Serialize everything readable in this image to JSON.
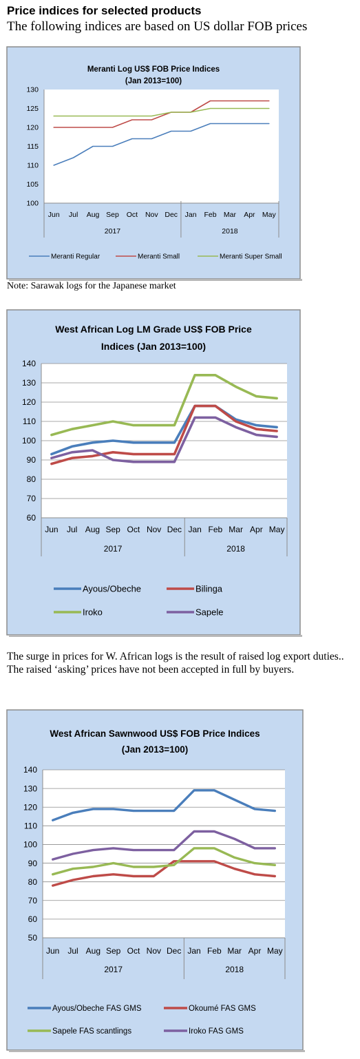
{
  "page": {
    "heading": "Price indices for selected products",
    "subheading": "The following indices are based on US dollar FOB prices",
    "note": "Note: Sarawak logs for the Japanese market",
    "paragraph": "The surge in prices for W. African logs is the result of raised log export duties.. The raised ‘asking’ prices have not been accepted in full by buyers."
  },
  "chart_data": [
    {
      "type": "line",
      "title": "Meranti Log US$ FOB Price Indices",
      "subtitle": "(Jan 2013=100)",
      "categories": [
        "Jun",
        "Jul",
        "Aug",
        "Sep",
        "Oct",
        "Nov",
        "Dec",
        "Jan",
        "Feb",
        "Mar",
        "Apr",
        "May"
      ],
      "year_groups": [
        {
          "label": "2017",
          "count": 7
        },
        {
          "label": "2018",
          "count": 5
        }
      ],
      "ylim": [
        100,
        130
      ],
      "yticks": [
        100,
        105,
        110,
        115,
        120,
        125,
        130
      ],
      "grid": false,
      "legend": "bottom",
      "series": [
        {
          "name": "Meranti Regular",
          "color": "#4a7ebb",
          "values": [
            110,
            112,
            115,
            115,
            117,
            117,
            119,
            119,
            121,
            121,
            121,
            121
          ]
        },
        {
          "name": "Meranti Small",
          "color": "#be4b48",
          "values": [
            120,
            120,
            120,
            120,
            122,
            122,
            124,
            124,
            127,
            127,
            127,
            127
          ]
        },
        {
          "name": "Meranti Super Small",
          "color": "#98b954",
          "values": [
            123,
            123,
            123,
            123,
            123,
            123,
            124,
            124,
            125,
            125,
            125,
            125
          ]
        }
      ]
    },
    {
      "type": "line",
      "title": "West African Log LM Grade US$ FOB Price",
      "subtitle": "Indices (Jan 2013=100)",
      "categories": [
        "Jun",
        "Jul",
        "Aug",
        "Sep",
        "Oct",
        "Nov",
        "Dec",
        "Jan",
        "Feb",
        "Mar",
        "Apr",
        "May"
      ],
      "year_groups": [
        {
          "label": "2017",
          "count": 7
        },
        {
          "label": "2018",
          "count": 5
        }
      ],
      "ylim": [
        60,
        140
      ],
      "yticks": [
        60,
        70,
        80,
        90,
        100,
        110,
        120,
        130,
        140
      ],
      "grid": true,
      "legend": "bottom",
      "series": [
        {
          "name": "Ayous/Obeche",
          "color": "#4a7ebb",
          "values": [
            93,
            97,
            99,
            100,
            99,
            99,
            99,
            118,
            118,
            111,
            108,
            107
          ]
        },
        {
          "name": "Bilinga",
          "color": "#be4b48",
          "values": [
            88,
            91,
            92,
            94,
            93,
            93,
            93,
            118,
            118,
            110,
            106,
            105
          ]
        },
        {
          "name": "Iroko",
          "color": "#98b954",
          "values": [
            103,
            106,
            108,
            110,
            108,
            108,
            108,
            134,
            134,
            128,
            123,
            122
          ]
        },
        {
          "name": "Sapele",
          "color": "#7d60a0",
          "values": [
            91,
            94,
            95,
            90,
            89,
            89,
            89,
            112,
            112,
            107,
            103,
            102
          ]
        }
      ]
    },
    {
      "type": "line",
      "title": "West African Sawnwood US$ FOB Price Indices",
      "subtitle": "(Jan 2013=100)",
      "categories": [
        "Jun",
        "Jul",
        "Aug",
        "Sep",
        "Oct",
        "Nov",
        "Dec",
        "Jan",
        "Feb",
        "Mar",
        "Apr",
        "May"
      ],
      "year_groups": [
        {
          "label": "2017",
          "count": 7
        },
        {
          "label": "2018",
          "count": 5
        }
      ],
      "ylim": [
        50,
        140
      ],
      "yticks": [
        50,
        60,
        70,
        80,
        90,
        100,
        110,
        120,
        130,
        140
      ],
      "grid": true,
      "legend": "bottom",
      "series": [
        {
          "name": "Ayous/Obeche  FAS GMS",
          "color": "#4a7ebb",
          "values": [
            113,
            117,
            119,
            119,
            118,
            118,
            118,
            129,
            129,
            124,
            119,
            118
          ]
        },
        {
          "name": "Okoumé  FAS GMS",
          "color": "#be4b48",
          "values": [
            78,
            81,
            83,
            84,
            83,
            83,
            91,
            91,
            91,
            87,
            84,
            83
          ]
        },
        {
          "name": "Sapele FAS scantlings",
          "color": "#98b954",
          "values": [
            84,
            87,
            88,
            90,
            88,
            88,
            89,
            98,
            98,
            93,
            90,
            89
          ]
        },
        {
          "name": "Iroko FAS GMS",
          "color": "#7d60a0",
          "values": [
            92,
            95,
            97,
            98,
            97,
            97,
            97,
            107,
            107,
            103,
            98,
            98
          ]
        }
      ]
    }
  ]
}
